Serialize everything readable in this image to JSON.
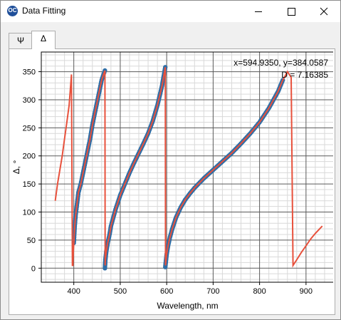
{
  "window": {
    "title": "Data Fitting",
    "icon_label": "OC"
  },
  "tabs": [
    {
      "label": "Ψ",
      "active": false
    },
    {
      "label": "Δ",
      "active": true
    }
  ],
  "readout": {
    "coords": "x=594.9350, y=384.0587",
    "delta": "D = 7.16385"
  },
  "colors": {
    "data_points": "#2f6ea6",
    "fit_line": "#e8513c"
  },
  "chart_data": {
    "type": "scatter",
    "xlabel": "Wavelength, nm",
    "ylabel": "Δ, °",
    "xlim": [
      330,
      960
    ],
    "ylim": [
      -25,
      385
    ],
    "xticks": [
      400,
      500,
      600,
      700,
      800,
      900
    ],
    "yticks": [
      0,
      50,
      100,
      150,
      200,
      250,
      300,
      350
    ],
    "grid": true,
    "series": [
      {
        "kind": "points",
        "x": [
          400,
          402,
          404,
          407,
          410,
          415,
          420,
          425,
          430,
          435,
          440,
          445,
          450,
          455,
          460,
          464,
          467
        ],
        "y": [
          45,
          75,
          95,
          115,
          135,
          150,
          170,
          190,
          210,
          230,
          255,
          275,
          295,
          315,
          335,
          345,
          352
        ]
      },
      {
        "kind": "points",
        "x": [
          467,
          468,
          470,
          473,
          477,
          480,
          490,
          500,
          510,
          520,
          530,
          540,
          550,
          560,
          570,
          580,
          590,
          597
        ],
        "y": [
          0,
          15,
          30,
          45,
          60,
          75,
          105,
          130,
          150,
          170,
          188,
          205,
          222,
          240,
          262,
          290,
          325,
          358
        ]
      },
      {
        "kind": "points",
        "x": [
          597,
          598,
          600,
          603,
          607,
          612,
          620,
          630,
          640,
          650,
          660,
          680,
          700,
          720,
          740,
          760,
          780,
          800,
          820,
          840,
          850
        ],
        "y": [
          2,
          10,
          25,
          40,
          55,
          70,
          90,
          108,
          122,
          133,
          143,
          160,
          175,
          190,
          205,
          222,
          240,
          260,
          285,
          315,
          335
        ]
      },
      {
        "kind": "line",
        "x": [
          360,
          365,
          370,
          375,
          380,
          385,
          390,
          395,
          397,
          398,
          399,
          400,
          402,
          404,
          407,
          410,
          415,
          420,
          425,
          430,
          435,
          440,
          445,
          450,
          455,
          460,
          464,
          467,
          467.5,
          468,
          470,
          473,
          477,
          480,
          490,
          500,
          510,
          520,
          530,
          540,
          550,
          560,
          570,
          580,
          590,
          597,
          597.5,
          598,
          600,
          603,
          607,
          612,
          620,
          630,
          640,
          650,
          660,
          680,
          700,
          720,
          740,
          760,
          780,
          800,
          820,
          840,
          850,
          860,
          868,
          872,
          880,
          890,
          900,
          910,
          920,
          935
        ],
        "y": [
          120,
          150,
          175,
          200,
          230,
          260,
          290,
          345,
          5,
          5,
          30,
          45,
          75,
          95,
          115,
          135,
          150,
          170,
          190,
          210,
          230,
          255,
          275,
          295,
          315,
          335,
          345,
          352,
          5,
          15,
          30,
          45,
          60,
          75,
          105,
          130,
          150,
          170,
          188,
          205,
          222,
          240,
          262,
          290,
          325,
          358,
          5,
          10,
          25,
          40,
          55,
          70,
          90,
          108,
          122,
          133,
          143,
          160,
          175,
          190,
          205,
          222,
          240,
          260,
          285,
          315,
          335,
          350,
          340,
          5,
          15,
          28,
          40,
          52,
          62,
          75
        ]
      }
    ]
  }
}
